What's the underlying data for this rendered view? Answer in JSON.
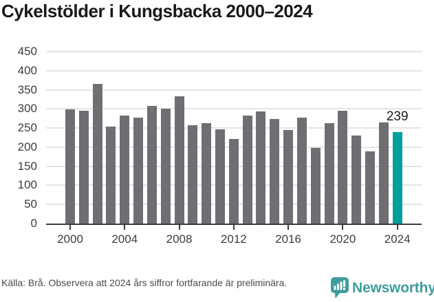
{
  "title": "Cykelstölder i Kungsbacka 2000–2024",
  "chart_data": {
    "type": "bar",
    "title": "Cykelstölder i Kungsbacka 2000–2024",
    "categories": [
      "2000",
      "2001",
      "2002",
      "2003",
      "2004",
      "2005",
      "2006",
      "2007",
      "2008",
      "2009",
      "2010",
      "2011",
      "2012",
      "2013",
      "2014",
      "2015",
      "2016",
      "2017",
      "2018",
      "2019",
      "2020",
      "2021",
      "2022",
      "2023",
      "2024"
    ],
    "values": [
      299,
      295,
      366,
      254,
      282,
      278,
      307,
      301,
      333,
      258,
      263,
      246,
      221,
      283,
      294,
      274,
      245,
      278,
      198,
      262,
      296,
      230,
      189,
      264,
      239
    ],
    "xlabel": "",
    "ylabel": "",
    "ylim": [
      0,
      450
    ],
    "yticks": [
      0,
      50,
      100,
      150,
      200,
      250,
      300,
      350,
      400,
      450
    ],
    "xticks": [
      "2000",
      "2004",
      "2008",
      "2012",
      "2016",
      "2020",
      "2024"
    ],
    "grid": true,
    "legend": "none",
    "bar_color": "#6e6e73",
    "highlight_color": "#00a09b",
    "grid_color": "#e4e4e4",
    "axis_color": "#3c3c3c",
    "annotation": {
      "text": "239",
      "category": "2024",
      "value": 239
    }
  },
  "footer": {
    "source_text": "Källa: Brå. Observera att 2024 års siffror fortfarande är preliminära."
  },
  "branding": {
    "name": "Newsworthy",
    "icon": "newsworthy-bar-chart-bubble-icon",
    "color": "#3f9e9c",
    "icon_color": "#3f9e9c"
  }
}
